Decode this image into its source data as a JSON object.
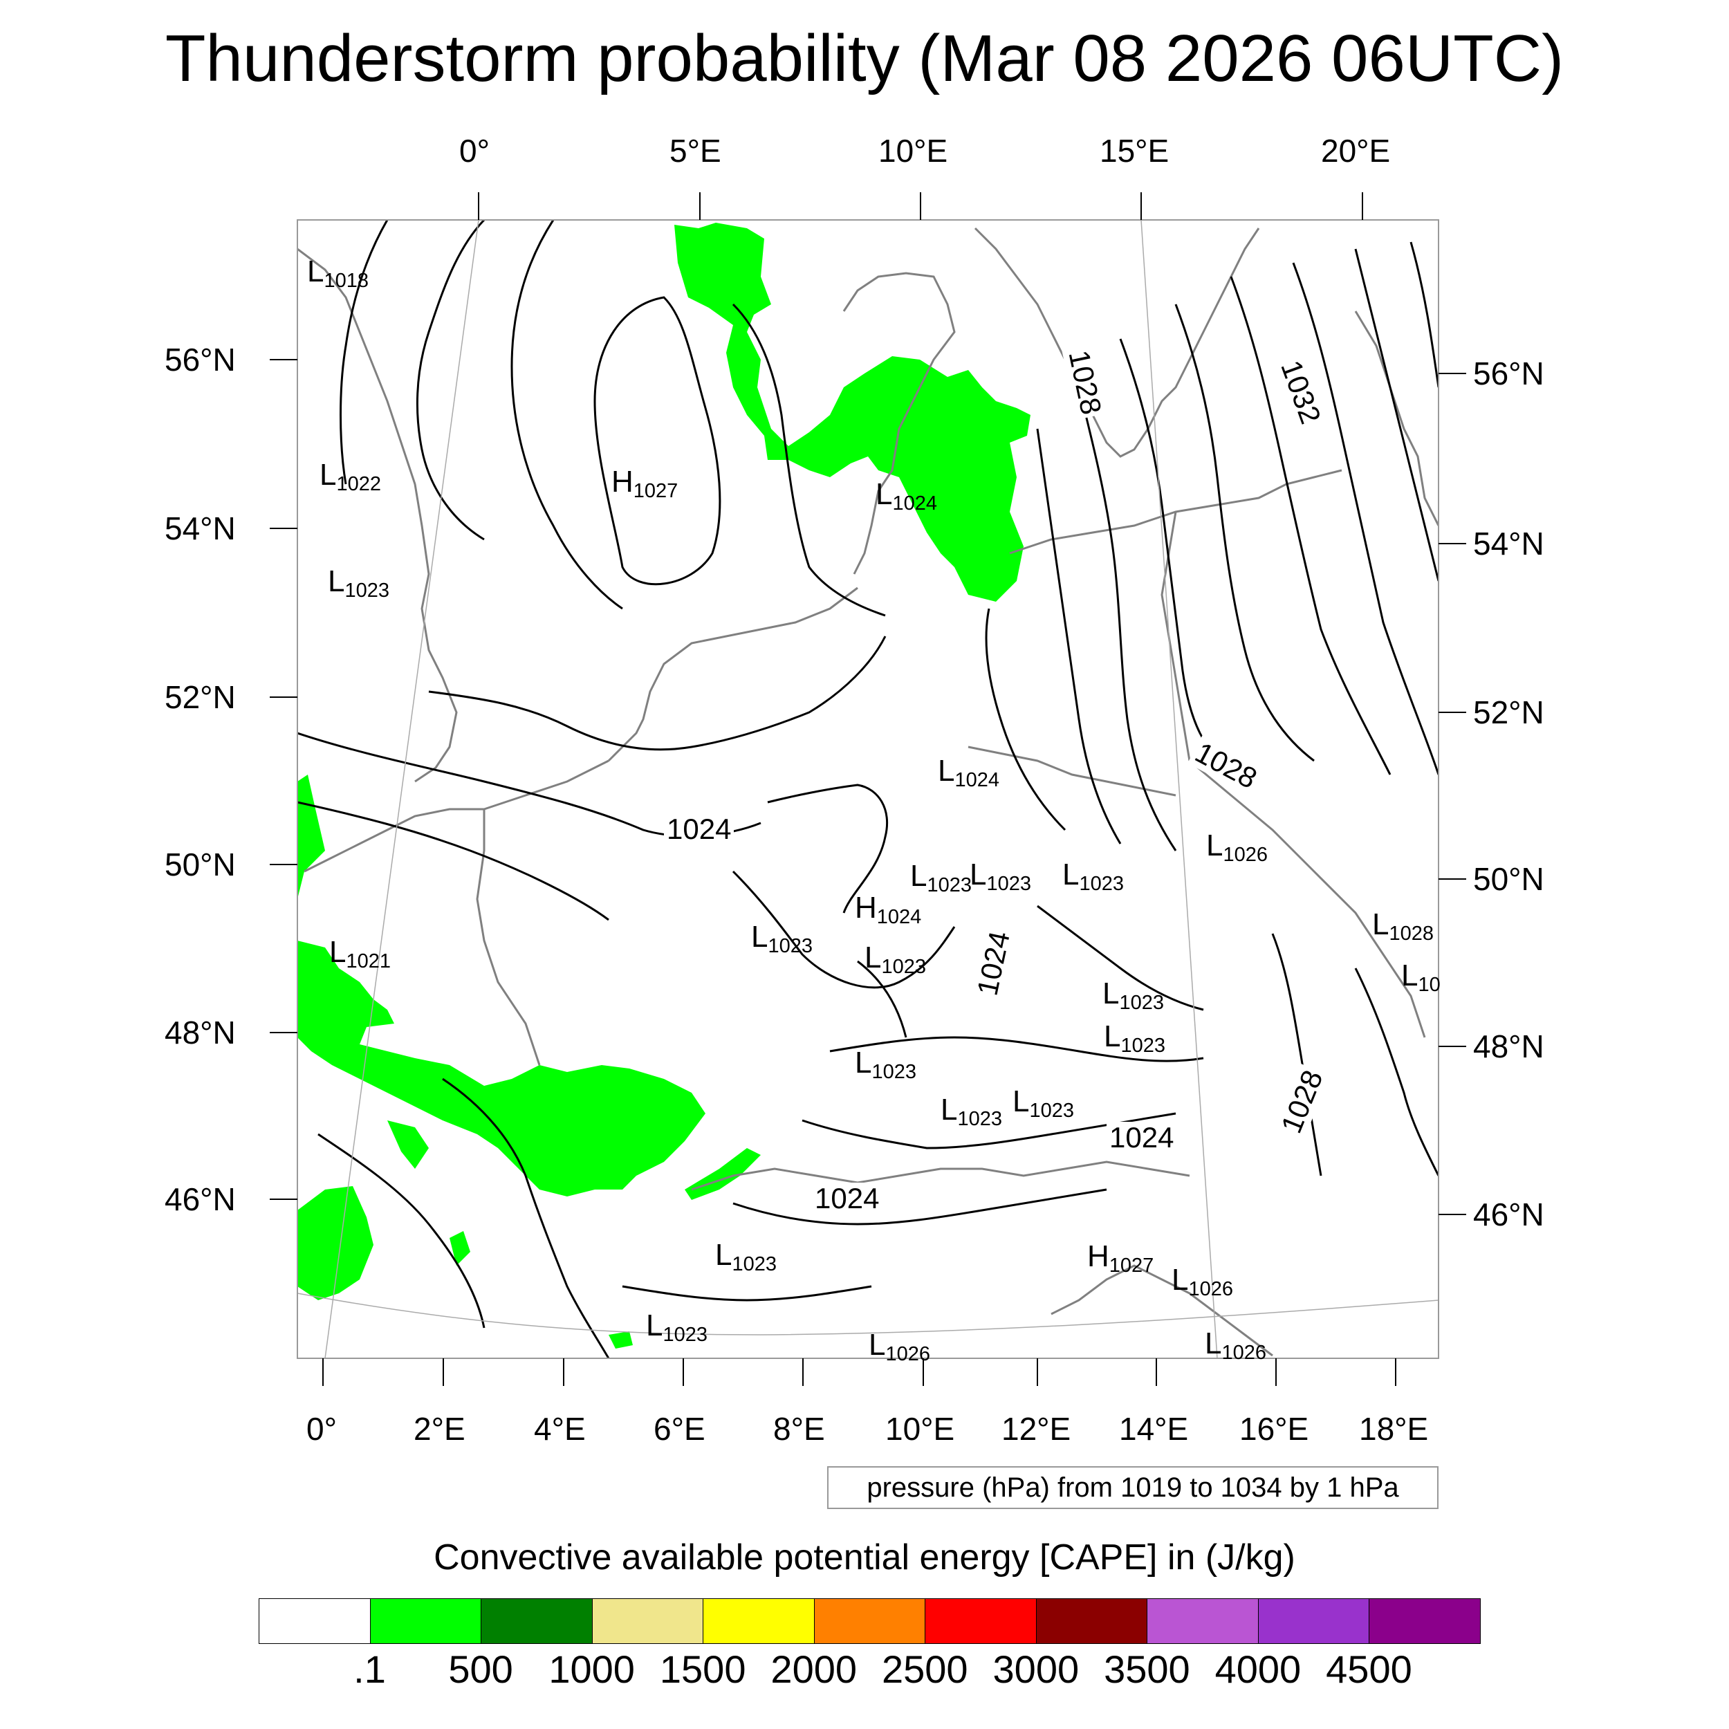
{
  "title": "Thunderstorm probability (Mar 08 2026 06UTC)",
  "top_lon_labels": [
    "0°",
    "5°E",
    "10°E",
    "15°E",
    "20°E"
  ],
  "left_lat_labels": [
    "56°N",
    "54°N",
    "52°N",
    "50°N",
    "48°N",
    "46°N"
  ],
  "right_lat_labels": [
    "56°N",
    "54°N",
    "52°N",
    "50°N",
    "48°N",
    "46°N"
  ],
  "bottom_lon_labels": [
    "0°",
    "2°E",
    "4°E",
    "6°E",
    "8°E",
    "10°E",
    "12°E",
    "14°E",
    "16°E",
    "18°E"
  ],
  "contour_note": "pressure (hPa) from 1019 to 1034 by 1 hPa",
  "colorbar": {
    "title": "Convective available potential energy [CAPE] in (J/kg)",
    "colors": [
      "#ffffff",
      "#00ff00",
      "#008000",
      "#f0e68c",
      "#ffff00",
      "#ff8000",
      "#ff0000",
      "#8b0000",
      "#ba55d3",
      "#9932cc",
      "#8b008b"
    ],
    "labels": [
      ".1",
      "500",
      "1000",
      "1500",
      "2000",
      "2500",
      "3000",
      "3500",
      "4000",
      "4500"
    ]
  },
  "pressure_centers": [
    {
      "letter": "L",
      "value": "1018"
    },
    {
      "letter": "L",
      "value": "1022"
    },
    {
      "letter": "H",
      "value": "1027"
    },
    {
      "letter": "L",
      "value": "1024"
    },
    {
      "letter": "L",
      "value": "1023"
    },
    {
      "letter": "L",
      "value": "1024"
    },
    {
      "letter": "L",
      "value": "1021"
    },
    {
      "letter": "L",
      "value": "1023"
    },
    {
      "letter": "H",
      "value": "1024"
    },
    {
      "letter": "L",
      "value": "1023"
    },
    {
      "letter": "L",
      "value": "1023"
    },
    {
      "letter": "L",
      "value": "1023"
    },
    {
      "letter": "L",
      "value": "1023"
    },
    {
      "letter": "L",
      "value": "1026"
    },
    {
      "letter": "L",
      "value": "1028"
    },
    {
      "letter": "L",
      "value": "10"
    },
    {
      "letter": "L",
      "value": "1023"
    },
    {
      "letter": "L",
      "value": "1023"
    },
    {
      "letter": "L",
      "value": "1023"
    },
    {
      "letter": "L",
      "value": "1023"
    },
    {
      "letter": "L",
      "value": "1023"
    },
    {
      "letter": "L",
      "value": "1023"
    },
    {
      "letter": "H",
      "value": "1027"
    },
    {
      "letter": "L",
      "value": "1026"
    },
    {
      "letter": "L",
      "value": "1023"
    },
    {
      "letter": "L",
      "value": "1026"
    },
    {
      "letter": "L",
      "value": "1026"
    }
  ],
  "isobar_labels": [
    "1028",
    "1032",
    "1028",
    "1024",
    "1024",
    "1024",
    "1024",
    "1028"
  ]
}
